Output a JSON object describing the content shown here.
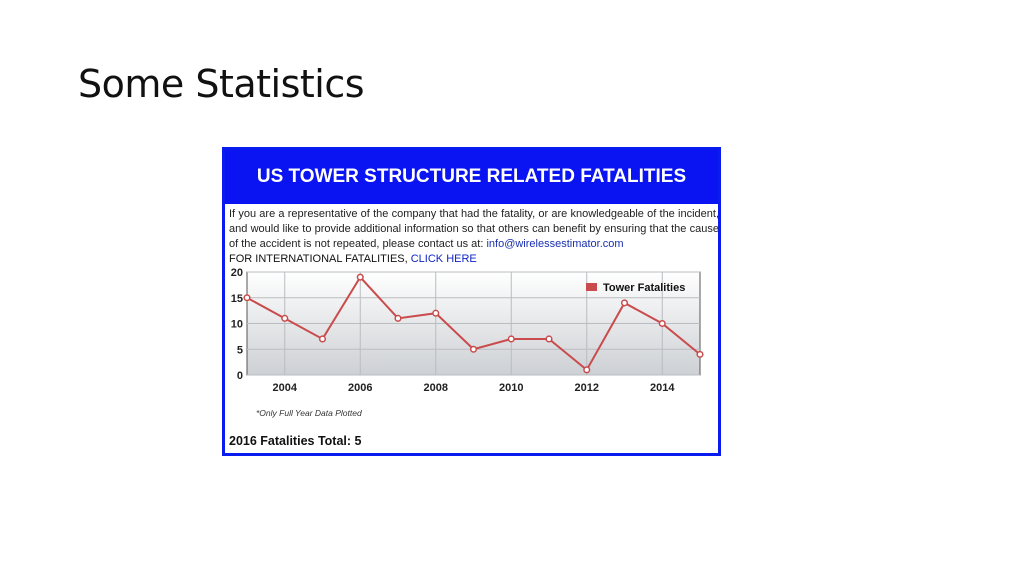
{
  "slide": {
    "title": "Some Statistics"
  },
  "panel": {
    "header": "US TOWER STRUCTURE RELATED FATALITIES",
    "intro_text": "If you are a representative of the company that had the fatality, or are knowledgeable of the incident, and would like to provide additional information so that others can benefit by ensuring that the cause of the accident is not repeated, please contact us at:",
    "contact_email": "info@wirelessestimator.com",
    "intl_text": "FOR INTERNATIONAL FATALITIES,",
    "intl_link": "CLICK HERE",
    "footnote": "*Only Full Year Data Plotted",
    "total": "2016 Fatalities Total: 5"
  },
  "chart_data": {
    "type": "line",
    "x": [
      2003,
      2004,
      2005,
      2006,
      2007,
      2008,
      2009,
      2010,
      2011,
      2012,
      2013,
      2014,
      2015
    ],
    "series": [
      {
        "name": "Tower Fatalities",
        "values": [
          15,
          11,
          7,
          19,
          11,
          12,
          5,
          7,
          7,
          1,
          14,
          10,
          4
        ],
        "color": "#c94b4b"
      }
    ],
    "xticks": [
      "2004",
      "2006",
      "2008",
      "2010",
      "2012",
      "2014"
    ],
    "yticks": [
      "0",
      "5",
      "10",
      "15",
      "20"
    ],
    "ylim": [
      0,
      20
    ],
    "xlim": [
      2003,
      2015
    ],
    "grid": true,
    "legend": "top-right"
  }
}
